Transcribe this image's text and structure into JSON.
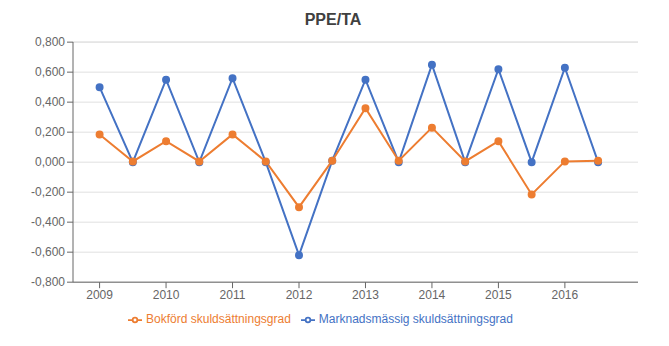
{
  "chart_data": {
    "type": "line",
    "title": "PPE/TA",
    "x": [
      2009,
      2009.5,
      2010,
      2010.5,
      2011,
      2011.5,
      2012,
      2012.5,
      2013,
      2013.5,
      2014,
      2014.5,
      2015,
      2015.5,
      2016,
      2016.5
    ],
    "series": [
      {
        "name": "Marknadsmässig skuldsättningsgrad",
        "color": "#4472C4",
        "marker": "circle",
        "line_style": "solid",
        "values": [
          0.5,
          0.0,
          0.55,
          0.0,
          0.56,
          0.0,
          -0.62,
          0.01,
          0.55,
          0.0,
          0.65,
          0.0,
          0.62,
          0.0,
          0.63,
          0.0
        ]
      },
      {
        "name": "Bokförd skuldsättningsgrad",
        "color": "#ED7D31",
        "marker": "circle",
        "line_style": "solid",
        "values": [
          0.185,
          0.005,
          0.14,
          0.005,
          0.185,
          0.005,
          -0.3,
          0.01,
          0.36,
          0.01,
          0.23,
          0.005,
          0.14,
          -0.215,
          0.005,
          0.01
        ]
      }
    ],
    "xlim": [
      2008.6,
      2017.1
    ],
    "xticks": [
      2009,
      2010,
      2011,
      2012,
      2013,
      2014,
      2015,
      2016
    ],
    "ylim": [
      -0.8,
      0.801
    ],
    "yticks": [
      {
        "value": -0.8,
        "label": "-0,800"
      },
      {
        "value": -0.6,
        "label": "-0,600"
      },
      {
        "value": -0.4,
        "label": "-0,400"
      },
      {
        "value": -0.2,
        "label": "-0,200"
      },
      {
        "value": 0.0,
        "label": "0,000"
      },
      {
        "value": 0.2,
        "label": "0,200"
      },
      {
        "value": 0.4,
        "label": "0,400"
      },
      {
        "value": 0.6,
        "label": "0,600"
      },
      {
        "value": 0.8,
        "label": "0,800"
      }
    ],
    "grid": true,
    "legend": "bottom"
  }
}
